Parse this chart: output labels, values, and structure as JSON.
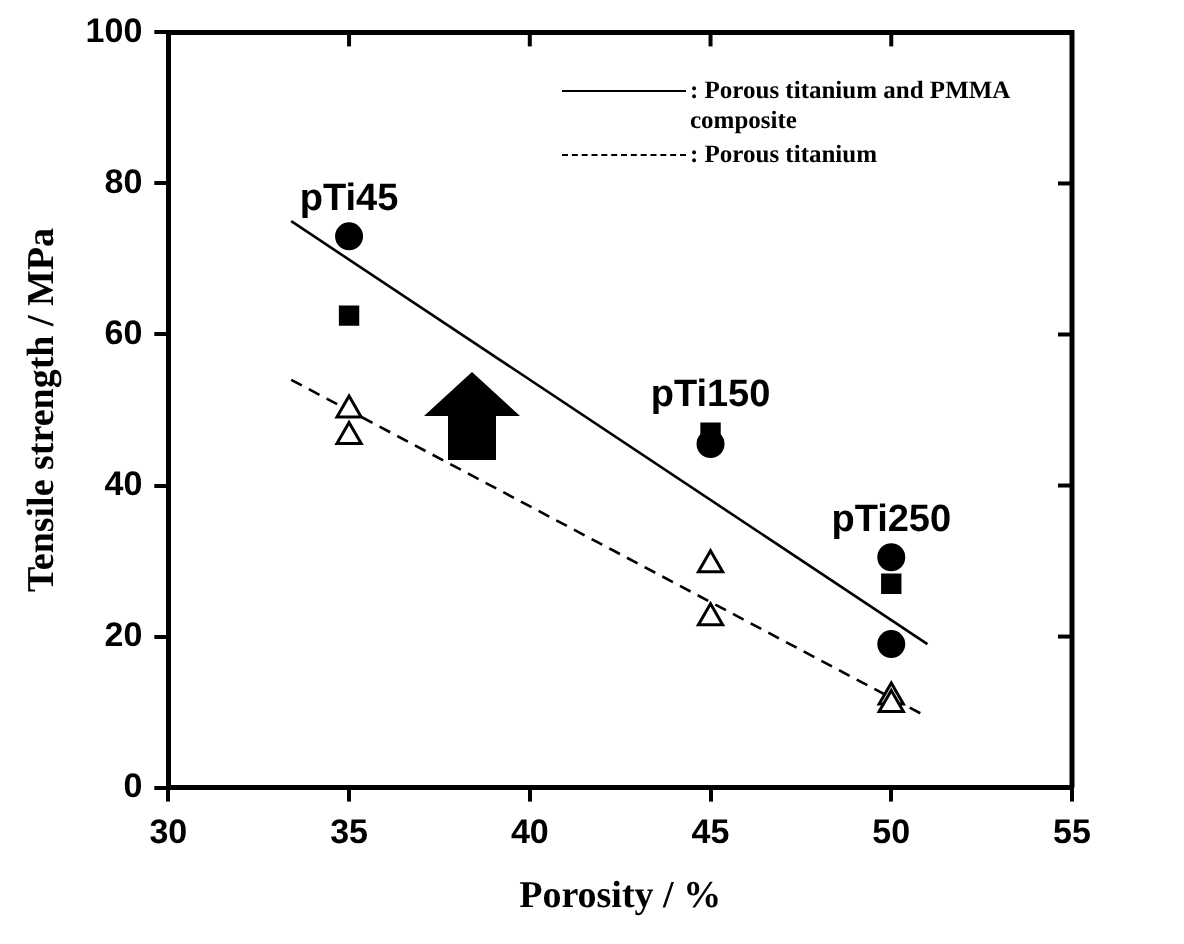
{
  "chart_data": {
    "type": "scatter",
    "xlabel": "Porosity / %",
    "ylabel": "Tensile strength / MPa",
    "xlim": [
      30,
      55
    ],
    "xticks": [
      30,
      35,
      40,
      45,
      50,
      55
    ],
    "ylim": [
      0,
      100
    ],
    "yticks": [
      0,
      20,
      40,
      60,
      80,
      100
    ],
    "grid": false,
    "legend": "top right",
    "series": [
      {
        "type": "scatter",
        "marker": "circle",
        "color": "#000000",
        "x": [
          35,
          45,
          50,
          50
        ],
        "values": [
          73,
          45.5,
          30.5,
          19
        ]
      },
      {
        "type": "scatter",
        "marker": "square",
        "color": "#000000",
        "x": [
          35,
          45,
          50
        ],
        "values": [
          62.5,
          47,
          27
        ]
      },
      {
        "type": "scatter",
        "marker": "triangle",
        "color": "#000000",
        "x": [
          35,
          35,
          45,
          45,
          50,
          50
        ],
        "values": [
          50,
          46.5,
          29.5,
          22.5,
          12,
          11
        ]
      },
      {
        "type": "line",
        "name": ": Porous titanium and PMMA composite",
        "line_style": "solid",
        "color": "#000000",
        "x": [
          33.4,
          51
        ],
        "values": [
          75,
          19
        ]
      },
      {
        "type": "line",
        "name": ": Porous titanium",
        "line_style": "dashed",
        "color": "#000000",
        "x": [
          33.4,
          50.9
        ],
        "values": [
          54,
          9.6
        ]
      }
    ],
    "annotations": [
      {
        "text": "pTi45",
        "x": 35,
        "y": 73
      },
      {
        "text": "pTi150",
        "x": 45,
        "y": 47
      },
      {
        "text": "pTi250",
        "x": 50,
        "y": 30.5
      }
    ]
  }
}
